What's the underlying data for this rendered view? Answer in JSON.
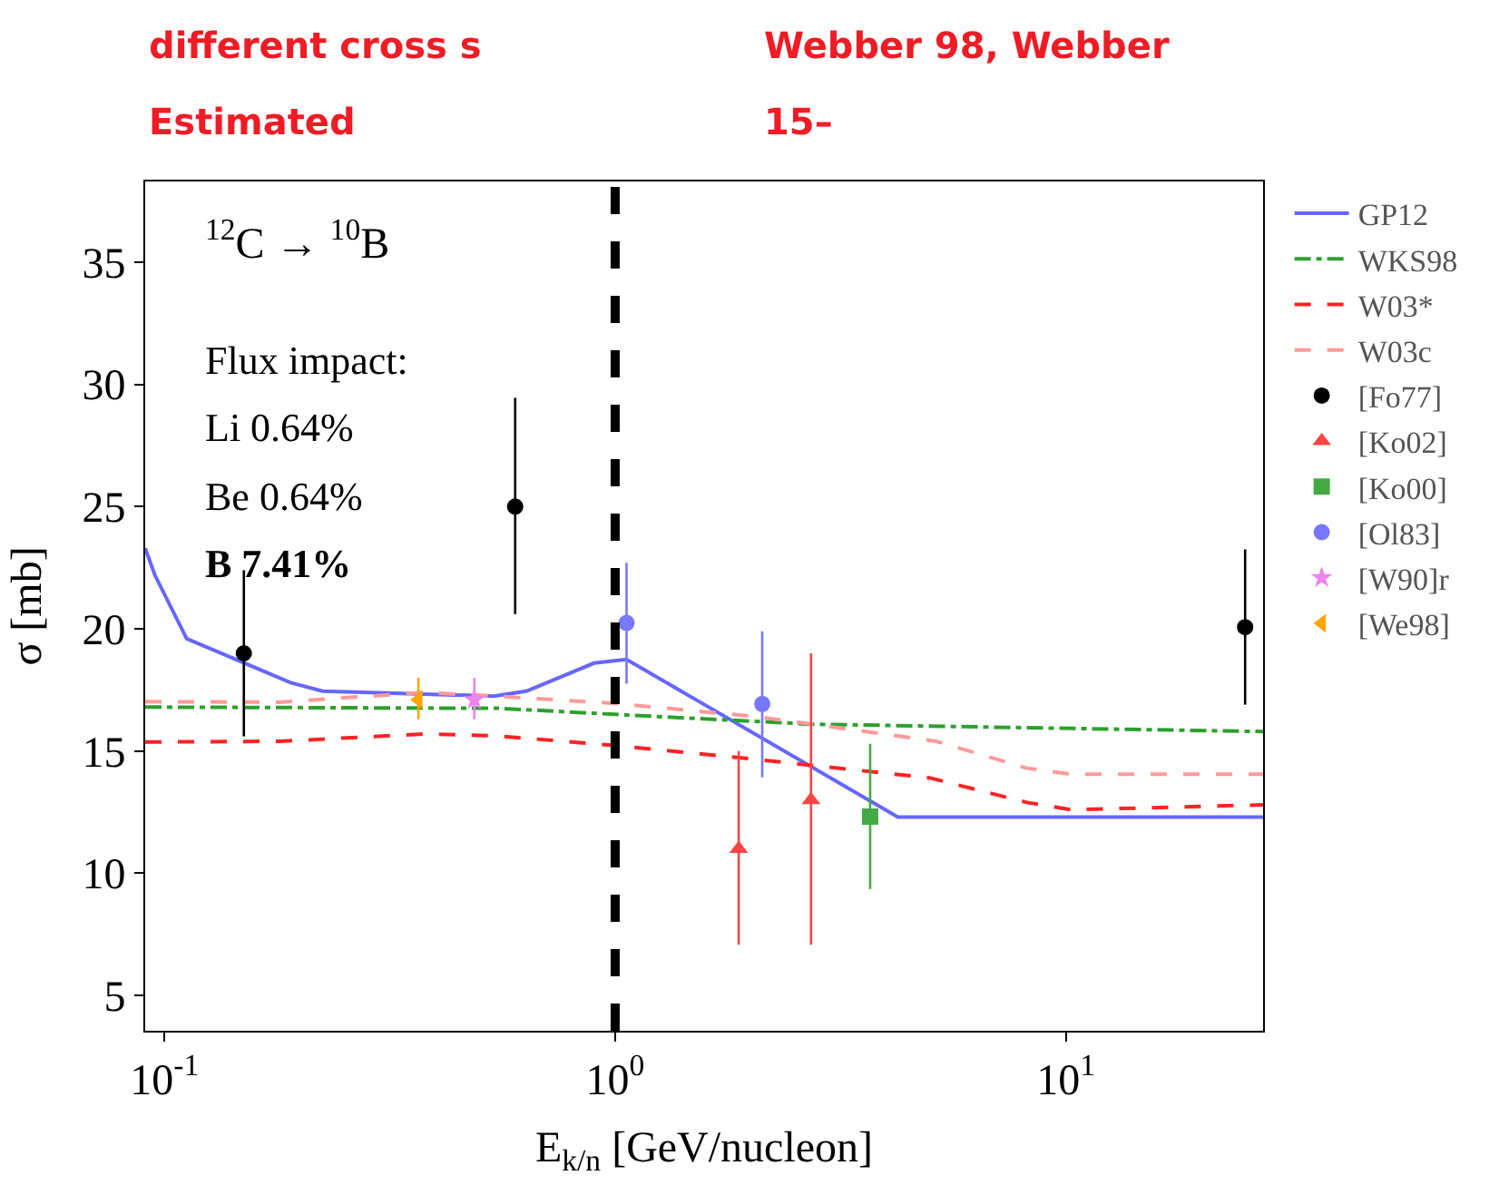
{
  "chart_data": {
    "type": "line",
    "xlabel": "E$_{k/n}$ [GeV/nucleon]",
    "ylabel": "σ [mb]",
    "log": "x",
    "xlim": [
      0.0906,
      27.4
    ],
    "xticks": [
      {
        "value": 0.1,
        "label": "10$^{-1}$"
      },
      {
        "value": 1,
        "label": "10$^{0}$"
      },
      {
        "value": 10,
        "label": "10$^{1}$"
      }
    ],
    "ylim": [
      3.56,
      38.3
    ],
    "yticks": [
      5,
      10,
      15,
      20,
      25,
      30,
      35
    ],
    "legend": "right",
    "series": [
      {
        "name": "GP12",
        "color": "#6666ff",
        "line_style": "solid",
        "marker": "none",
        "x": [
          0.0906,
          0.0952,
          0.112,
          0.1905,
          0.2244,
          0.538,
          0.635,
          0.898,
          1.06,
          4.24,
          27.4
        ],
        "values": [
          23.3,
          22.2,
          19.6,
          17.8,
          17.45,
          17.25,
          17.45,
          18.6,
          18.75,
          12.3,
          12.3
        ]
      },
      {
        "name": "WKS98",
        "color": "#2ca02c",
        "line_style": "dashdot",
        "marker": "none",
        "x": [
          0.0906,
          0.55,
          1.0,
          2.73,
          27.4
        ],
        "values": [
          16.8,
          16.75,
          16.5,
          16.1,
          15.8
        ]
      },
      {
        "name": "W03*",
        "color": "#ff2222",
        "line_style": "dashed",
        "marker": "none",
        "x": [
          0.0906,
          0.18,
          0.378,
          0.538,
          1.0,
          2.08,
          5.0,
          8.2,
          10.3,
          27.4
        ],
        "values": [
          15.37,
          15.4,
          15.7,
          15.63,
          15.23,
          14.65,
          13.9,
          12.9,
          12.6,
          12.8
        ]
      },
      {
        "name": "W03c",
        "color": "#ff9999",
        "line_style": "dashed",
        "marker": "none",
        "x": [
          0.0906,
          0.18,
          0.378,
          0.538,
          1.0,
          2.08,
          3.6,
          5.16,
          8.2,
          10.3,
          27.4
        ],
        "values": [
          17.02,
          17.0,
          17.4,
          17.25,
          16.95,
          16.4,
          15.8,
          15.4,
          14.3,
          14.05,
          14.05
        ]
      },
      {
        "name": "[Fo77]",
        "type": "scatter",
        "color": "#000000",
        "marker": "circle",
        "x": [
          0.15,
          0.6,
          25.0
        ],
        "values": [
          19.0,
          25.0,
          20.07
        ],
        "errors": [
          [
            15.6,
            22.4
          ],
          [
            20.6,
            29.45
          ],
          [
            16.9,
            23.25
          ]
        ]
      },
      {
        "name": "[Ko02]",
        "type": "scatter",
        "color": "#ff4444",
        "marker": "triangle",
        "x": [
          1.88,
          2.72
        ],
        "values": [
          11.0,
          13.0
        ],
        "errors": [
          [
            7.08,
            15.0
          ],
          [
            7.08,
            19.0
          ]
        ]
      },
      {
        "name": "[Ko00]",
        "type": "scatter",
        "color": "#44aa44",
        "marker": "square",
        "x": [
          3.68
        ],
        "values": [
          12.32
        ],
        "errors": [
          [
            9.36,
            15.3
          ]
        ]
      },
      {
        "name": "[Ol83]",
        "type": "scatter",
        "color": "#7777ff",
        "x": [
          1.06,
          2.12
        ],
        "values": [
          20.24,
          16.93
        ],
        "errors": [
          [
            17.76,
            22.7
          ],
          [
            13.93,
            19.9
          ]
        ]
      },
      {
        "name": "[W90]r",
        "type": "scatter",
        "color": "#ee82ee",
        "marker": "star",
        "x": [
          0.487
        ],
        "values": [
          17.1
        ],
        "errors": [
          [
            16.3,
            18.0
          ]
        ]
      },
      {
        "name": "[We98]",
        "type": "scatter",
        "color": "#ffa500",
        "marker": "triangle-left",
        "x": [
          0.366
        ],
        "values": [
          17.1
        ],
        "errors": [
          [
            16.3,
            18.0
          ]
        ]
      }
    ],
    "ref_lines": [
      {
        "axis": "x",
        "value": 1,
        "color": "#000000",
        "line_style": "dashed"
      }
    ],
    "annotations": [
      "$^{12}$C → $^{10}$B",
      "Flux impact:",
      "Li 0.64%",
      "Be 0.64%",
      "B 7.41%",
      "different cross s",
      "Webber 98, Webber",
      "Estimated",
      "15–"
    ]
  }
}
